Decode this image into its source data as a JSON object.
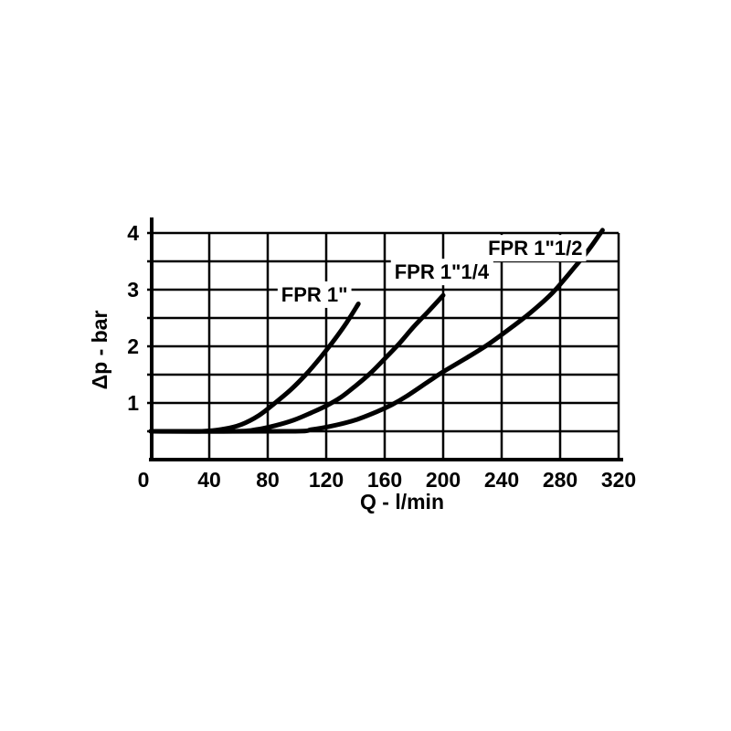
{
  "chart_data": {
    "type": "line",
    "title": "",
    "xlabel": "Q - l/min",
    "ylabel": "Δp - bar",
    "xlim": [
      0,
      320
    ],
    "ylim": [
      0,
      4
    ],
    "xticks": [
      0,
      40,
      80,
      120,
      160,
      200,
      240,
      280,
      320
    ],
    "yticks": [
      1,
      2,
      3,
      4
    ],
    "grid": {
      "on": true,
      "x_step": 40,
      "y_step": 0.5
    },
    "legend_position": "inline-labels",
    "line_color": "#000000",
    "background_color": "#ffffff",
    "series": [
      {
        "name": "FPR 1\"",
        "label_pos": [
          112,
          2.92
        ],
        "points": [
          [
            0,
            0.5
          ],
          [
            35,
            0.5
          ],
          [
            50,
            0.54
          ],
          [
            62,
            0.62
          ],
          [
            74,
            0.78
          ],
          [
            85,
            1.0
          ],
          [
            96,
            1.24
          ],
          [
            106,
            1.5
          ],
          [
            116,
            1.8
          ],
          [
            126,
            2.13
          ],
          [
            134,
            2.42
          ],
          [
            142,
            2.75
          ]
        ]
      },
      {
        "name": "FPR 1\"1/4",
        "label_pos": [
          199,
          3.32
        ],
        "points": [
          [
            0,
            0.5
          ],
          [
            58,
            0.5
          ],
          [
            72,
            0.53
          ],
          [
            85,
            0.6
          ],
          [
            98,
            0.7
          ],
          [
            110,
            0.83
          ],
          [
            120,
            0.95
          ],
          [
            130,
            1.1
          ],
          [
            140,
            1.3
          ],
          [
            150,
            1.52
          ],
          [
            160,
            1.78
          ],
          [
            170,
            2.05
          ],
          [
            180,
            2.35
          ],
          [
            190,
            2.62
          ],
          [
            200,
            2.9
          ]
        ]
      },
      {
        "name": "FPR 1\"1/2",
        "label_pos": [
          263,
          3.74
        ],
        "points": [
          [
            0,
            0.5
          ],
          [
            95,
            0.5
          ],
          [
            110,
            0.53
          ],
          [
            125,
            0.6
          ],
          [
            140,
            0.7
          ],
          [
            155,
            0.85
          ],
          [
            165,
            0.97
          ],
          [
            175,
            1.12
          ],
          [
            190,
            1.38
          ],
          [
            200,
            1.55
          ],
          [
            215,
            1.78
          ],
          [
            230,
            2.02
          ],
          [
            245,
            2.3
          ],
          [
            260,
            2.6
          ],
          [
            275,
            2.95
          ],
          [
            290,
            3.4
          ],
          [
            300,
            3.72
          ],
          [
            309,
            4.05
          ]
        ]
      }
    ]
  }
}
